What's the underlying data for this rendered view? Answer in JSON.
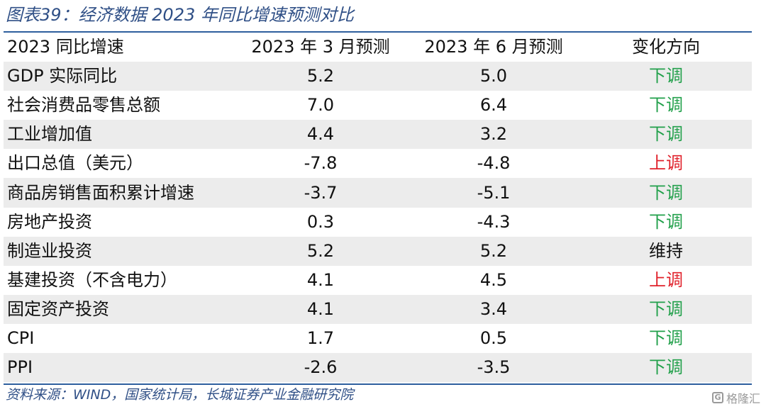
{
  "title": "图表39：经济数据 2023 年同比增速预测对比",
  "table": {
    "headers": [
      "2023 同比增速",
      "2023 年 3 月预测",
      "2023 年 6 月预测",
      "变化方向"
    ],
    "rows": [
      {
        "label": "GDP 实际同比",
        "march": "5.2",
        "june": "5.0",
        "direction": "下调",
        "dir": "down"
      },
      {
        "label": "社会消费品零售总额",
        "march": "7.0",
        "june": "6.4",
        "direction": "下调",
        "dir": "down"
      },
      {
        "label": "工业增加值",
        "march": "4.4",
        "june": "3.2",
        "direction": "下调",
        "dir": "down"
      },
      {
        "label": "出口总值（美元）",
        "march": "-7.8",
        "june": "-4.8",
        "direction": "上调",
        "dir": "up"
      },
      {
        "label": "商品房销售面积累计增速",
        "march": "-3.7",
        "june": "-5.1",
        "direction": "下调",
        "dir": "down"
      },
      {
        "label": "房地产投资",
        "march": "0.3",
        "june": "-4.3",
        "direction": "下调",
        "dir": "down"
      },
      {
        "label": "制造业投资",
        "march": "5.2",
        "june": "5.2",
        "direction": "维持",
        "dir": "hold"
      },
      {
        "label": "基建投资（不含电力）",
        "march": "4.1",
        "june": "4.5",
        "direction": "上调",
        "dir": "up"
      },
      {
        "label": "固定资产投资",
        "march": "4.1",
        "june": "3.4",
        "direction": "下调",
        "dir": "down"
      },
      {
        "label": "CPI",
        "march": "1.7",
        "june": "0.5",
        "direction": "下调",
        "dir": "down"
      },
      {
        "label": "PPI",
        "march": "-2.6",
        "june": "-3.5",
        "direction": "下调",
        "dir": "down"
      }
    ]
  },
  "colors": {
    "down": "#22a04b",
    "up": "#e0212b",
    "hold": "#111111",
    "accent": "#2e5f9e",
    "alt_row": "#ececec"
  },
  "source": "资料来源：WIND，国家统计局，长城证券产业金融研究院",
  "logo": {
    "icon": "g-logo-icon",
    "text": "格隆汇"
  }
}
